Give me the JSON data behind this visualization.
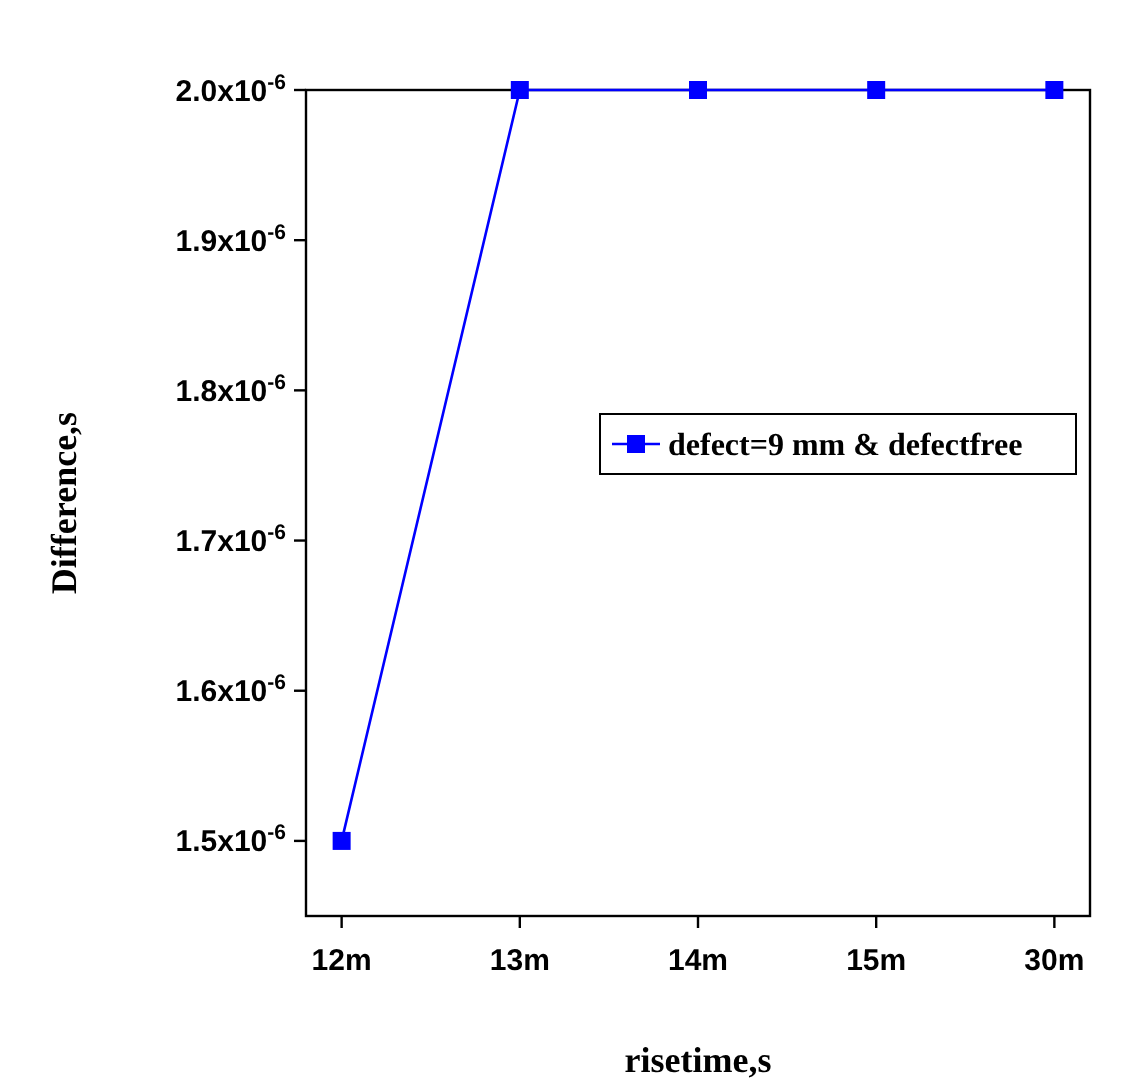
{
  "chart_data": {
    "type": "line",
    "xlabel": "risetime,s",
    "ylabel": "Difference,s",
    "categories": [
      "12m",
      "13m",
      "14m",
      "15m",
      "30m"
    ],
    "series": [
      {
        "name": "defect=9 mm & defectfree",
        "color": "#0000ff",
        "values": [
          1.5e-06,
          2e-06,
          2e-06,
          2e-06,
          2e-06
        ]
      }
    ],
    "ylim": [
      1.45e-06,
      2e-06
    ],
    "yticks": [
      {
        "value": 1.5e-06,
        "label": "1.5x10$^{-6}$"
      },
      {
        "value": 1.6e-06,
        "label": "1.6x10$^{-6}$"
      },
      {
        "value": 1.7e-06,
        "label": "1.7x10$^{-6}$"
      },
      {
        "value": 1.8e-06,
        "label": "1.8x10$^{-6}$"
      },
      {
        "value": 1.9e-06,
        "label": "1.9x10$^{-6}$"
      },
      {
        "value": 2e-06,
        "label": "2.0x10$^{-6}$"
      }
    ],
    "legend": "right",
    "marker": "square",
    "line_style": "solid",
    "grid": false
  }
}
